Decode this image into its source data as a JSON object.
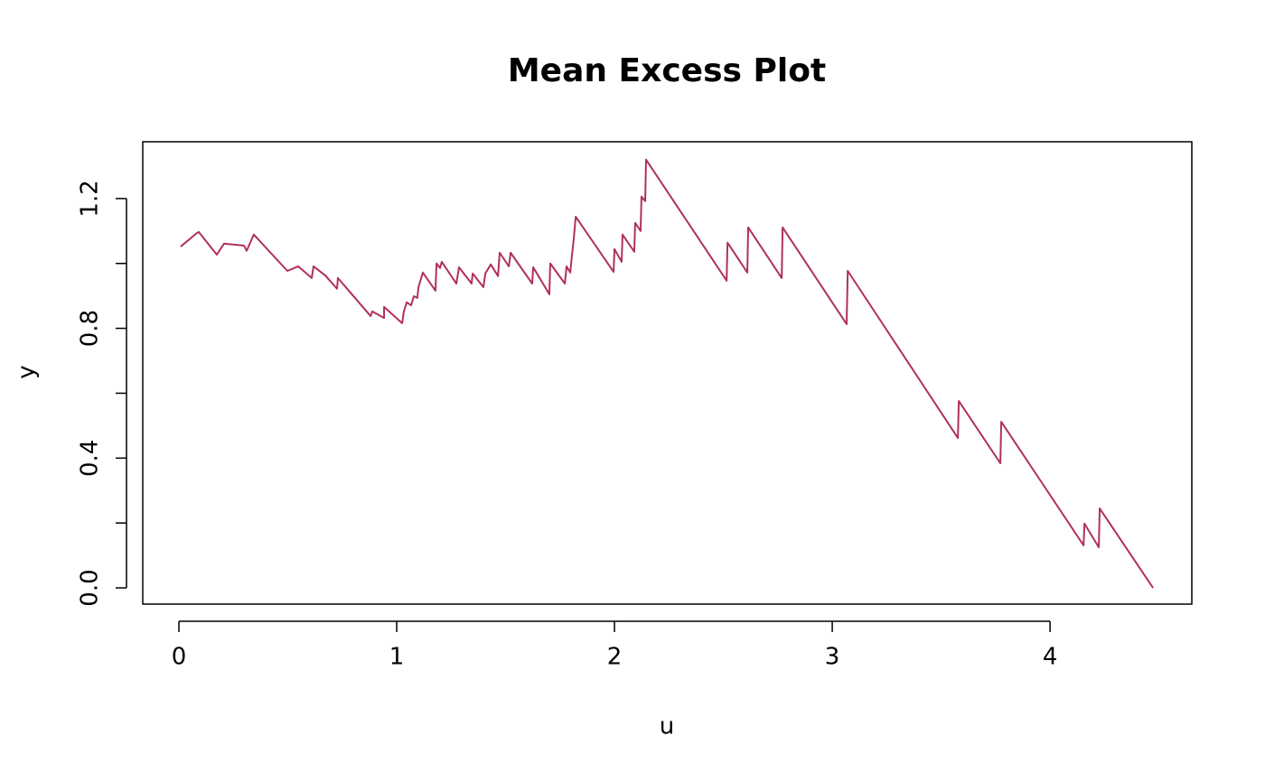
{
  "chart_data": {
    "type": "line",
    "title": "Mean Excess Plot",
    "x_label": "u",
    "y_label": "y",
    "x": [
      0.008,
      0.083,
      0.091,
      0.174,
      0.207,
      0.299,
      0.311,
      0.344,
      0.498,
      0.548,
      0.61,
      0.618,
      0.672,
      0.726,
      0.73,
      0.88,
      0.888,
      0.942,
      0.942,
      1.025,
      1.033,
      1.046,
      1.066,
      1.079,
      1.095,
      1.1,
      1.12,
      1.178,
      1.183,
      1.199,
      1.207,
      1.274,
      1.286,
      1.344,
      1.349,
      1.398,
      1.407,
      1.432,
      1.465,
      1.473,
      1.515,
      1.523,
      1.622,
      1.627,
      1.701,
      1.705,
      1.772,
      1.78,
      1.797,
      1.805,
      1.813,
      1.822,
      1.996,
      2.0,
      2.033,
      2.037,
      2.091,
      2.095,
      2.12,
      2.124,
      2.141,
      2.145,
      2.515,
      2.519,
      2.61,
      2.614,
      2.768,
      2.772,
      3.066,
      3.071,
      3.577,
      3.581,
      3.772,
      3.776,
      4.154,
      4.158,
      4.224,
      4.228,
      4.473
    ],
    "series": [
      {
        "color": "#b03060",
        "values": [
          1.052,
          1.094,
          1.097,
          1.027,
          1.061,
          1.055,
          1.039,
          1.089,
          0.977,
          0.991,
          0.955,
          0.991,
          0.963,
          0.922,
          0.955,
          0.838,
          0.852,
          0.832,
          0.866,
          0.816,
          0.852,
          0.88,
          0.871,
          0.899,
          0.894,
          0.927,
          0.972,
          0.916,
          1.0,
          0.986,
          1.005,
          0.938,
          0.988,
          0.938,
          0.969,
          0.927,
          0.969,
          0.997,
          0.961,
          1.033,
          0.991,
          1.033,
          0.938,
          0.988,
          0.905,
          1.0,
          0.938,
          0.991,
          0.972,
          1.027,
          1.075,
          1.144,
          0.974,
          1.044,
          1.005,
          1.089,
          1.036,
          1.125,
          1.1,
          1.206,
          1.192,
          1.32,
          0.947,
          1.064,
          0.972,
          1.111,
          0.955,
          1.111,
          0.813,
          0.977,
          0.462,
          0.576,
          0.384,
          0.512,
          0.131,
          0.198,
          0.125,
          0.245,
          0.0
        ]
      }
    ],
    "xlim": [
      -0.166,
      4.651
    ],
    "ylim": [
      -0.05,
      1.375
    ],
    "xticks": [
      0,
      1,
      2,
      3,
      4
    ],
    "yticks": [
      {
        "value": 0,
        "label": "0.0"
      },
      0.4,
      0.8,
      1.2
    ],
    "yminor_ticks": [
      0.2,
      0.6,
      1.0
    ]
  }
}
